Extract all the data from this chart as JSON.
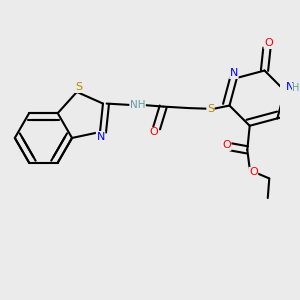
{
  "bg_color": "#ebebeb",
  "atom_colors": {
    "S": "#b8860b",
    "N": "#0000ff",
    "O": "#ff0000",
    "H": "#5f9ea0",
    "C": "#000000"
  },
  "bond_color": "#000000",
  "bond_width": 1.5
}
